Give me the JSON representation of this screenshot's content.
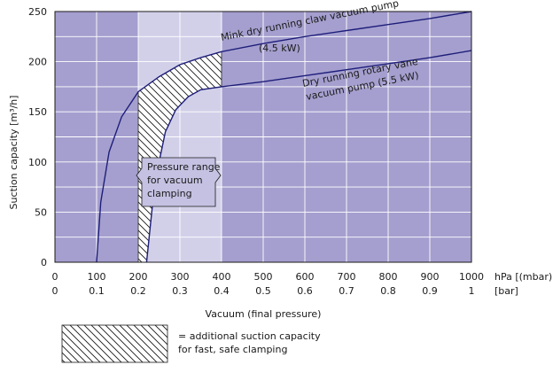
{
  "chart_data": {
    "type": "line",
    "xlabel": "Vacuum (final pressure)",
    "ylabel": "Suction capacity [m³/h]",
    "xlim": [
      0,
      1000
    ],
    "ylim": [
      0,
      250
    ],
    "x_ticks": [
      0,
      100,
      200,
      300,
      400,
      500,
      600,
      700,
      800,
      900,
      1000
    ],
    "x_tick_labels_hpa": [
      "0",
      "100",
      "200",
      "300",
      "400",
      "500",
      "600",
      "700",
      "800",
      "900",
      "1000"
    ],
    "x_unit_hpa": "hPa [(mbar)]",
    "x_tick_labels_bar": [
      "0",
      "0.1",
      "0.2",
      "0.3",
      "0.4",
      "0.5",
      "0.6",
      "0.7",
      "0.8",
      "0.9",
      "1"
    ],
    "x_unit_bar": "[bar]",
    "y_ticks": [
      0,
      50,
      100,
      150,
      200,
      250
    ],
    "grid": true,
    "plot_background": "#a59fcf",
    "highlight_background": "#d2d0e9",
    "curve_color": "#1e1e7a",
    "highlight_range": {
      "x": [
        200,
        400
      ],
      "label": "Pressure range for vacuum clamping",
      "label_lines": [
        "Pressure range",
        "for vacuum",
        "clamping"
      ]
    },
    "series": [
      {
        "name": "Mink dry running claw vacuum pump (4.5 kW)",
        "label_lines": [
          "Mink dry running claw vacuum pump",
          "(4.5 kW)"
        ],
        "points": [
          [
            100,
            0
          ],
          [
            110,
            60
          ],
          [
            130,
            110
          ],
          [
            160,
            145
          ],
          [
            200,
            170
          ],
          [
            250,
            185
          ],
          [
            300,
            197
          ],
          [
            350,
            204
          ],
          [
            400,
            210
          ],
          [
            500,
            218
          ],
          [
            600,
            225
          ],
          [
            700,
            231
          ],
          [
            800,
            237
          ],
          [
            900,
            243
          ],
          [
            1000,
            250
          ]
        ]
      },
      {
        "name": "Dry running rotary vane vacuum pump (5.5 kW)",
        "label_lines": [
          "Dry running rotary vane",
          "vacuum pump (5.5 kW)"
        ],
        "points": [
          [
            220,
            0
          ],
          [
            235,
            60
          ],
          [
            250,
            100
          ],
          [
            265,
            130
          ],
          [
            290,
            152
          ],
          [
            320,
            165
          ],
          [
            350,
            172
          ],
          [
            400,
            175
          ],
          [
            500,
            180
          ],
          [
            600,
            186
          ],
          [
            700,
            192
          ],
          [
            800,
            198
          ],
          [
            900,
            204
          ],
          [
            1000,
            211
          ]
        ]
      }
    ],
    "legend": {
      "description_lines": [
        "= additional suction capacity",
        "for fast, safe clamping"
      ]
    }
  }
}
